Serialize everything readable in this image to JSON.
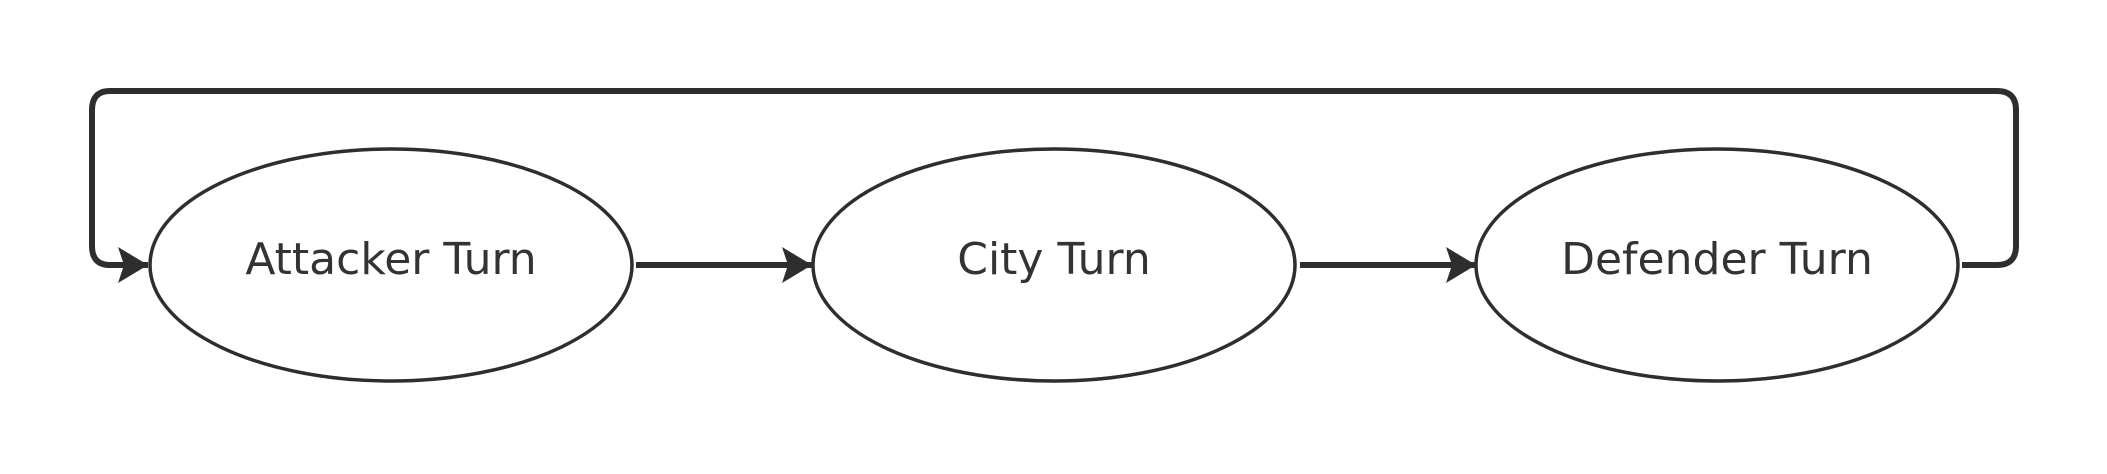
{
  "diagram": {
    "nodes": [
      {
        "id": "attacker",
        "label": "Attacker Turn"
      },
      {
        "id": "city",
        "label": "City Turn"
      },
      {
        "id": "defender",
        "label": "Defender Turn"
      }
    ],
    "edges": [
      {
        "from": "attacker",
        "to": "city"
      },
      {
        "from": "city",
        "to": "defender"
      },
      {
        "from": "defender",
        "to": "attacker"
      }
    ],
    "colors": {
      "stroke": "#2e2e2e",
      "text": "#333333",
      "background": "#ffffff"
    }
  }
}
